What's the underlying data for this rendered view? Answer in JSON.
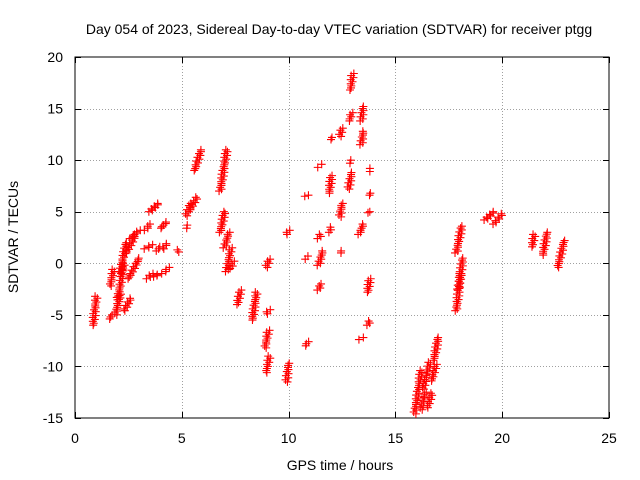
{
  "chart_data": {
    "type": "scatter",
    "title": "Day 054 of 2023, Sidereal Day-to-day VTEC variation (SDTVAR) for receiver ptgg",
    "xlabel": "GPS time / hours",
    "ylabel": "SDTVAR / TECUs",
    "xlim": [
      0,
      25
    ],
    "ylim": [
      -15,
      20
    ],
    "x_ticks": [
      0,
      5,
      10,
      15,
      20,
      25
    ],
    "y_ticks": [
      -15,
      -10,
      -5,
      0,
      5,
      10,
      15,
      20
    ],
    "grid": true,
    "marker": "+",
    "color": "#ff0000",
    "segments": [
      {
        "x": [
          0.85,
          1.0
        ],
        "y": [
          -6.0,
          -3.2
        ]
      },
      {
        "x": [
          1.6,
          1.75
        ],
        "y": [
          -5.4,
          -5.0
        ]
      },
      {
        "x": [
          1.65,
          1.8
        ],
        "y": [
          -2.2,
          -0.6
        ]
      },
      {
        "x": [
          1.9,
          2.1
        ],
        "y": [
          -5.0,
          -3.0
        ]
      },
      {
        "x": [
          2.0,
          2.3
        ],
        "y": [
          -3.5,
          0.0
        ]
      },
      {
        "x": [
          2.1,
          2.4
        ],
        "y": [
          -1.0,
          2.0
        ]
      },
      {
        "x": [
          2.3,
          2.6
        ],
        "y": [
          -4.6,
          -3.4
        ]
      },
      {
        "x": [
          2.4,
          2.8
        ],
        "y": [
          1.0,
          2.6
        ]
      },
      {
        "x": [
          2.5,
          3.0
        ],
        "y": [
          -1.5,
          0.5
        ]
      },
      {
        "x": [
          2.6,
          3.0
        ],
        "y": [
          2.4,
          3.2
        ]
      },
      {
        "x": [
          3.3,
          3.5
        ],
        "y": [
          3.2,
          3.8
        ]
      },
      {
        "x": [
          3.3,
          3.6
        ],
        "y": [
          1.4,
          1.8
        ]
      },
      {
        "x": [
          3.4,
          3.6
        ],
        "y": [
          -1.5,
          -1.0
        ]
      },
      {
        "x": [
          3.5,
          3.9
        ],
        "y": [
          5.0,
          5.8
        ]
      },
      {
        "x": [
          3.7,
          4.0
        ],
        "y": [
          -1.3,
          -1.0
        ]
      },
      {
        "x": [
          3.8,
          4.0
        ],
        "y": [
          1.2,
          1.6
        ]
      },
      {
        "x": [
          4.0,
          4.3
        ],
        "y": [
          3.4,
          4.0
        ]
      },
      {
        "x": [
          4.2,
          4.4
        ],
        "y": [
          -0.8,
          -0.4
        ]
      },
      {
        "x": [
          4.1,
          4.3
        ],
        "y": [
          1.4,
          1.9
        ]
      },
      {
        "x": [
          4.8,
          4.85
        ],
        "y": [
          1.1,
          1.3
        ]
      },
      {
        "x": [
          5.2,
          5.4
        ],
        "y": [
          4.6,
          5.8
        ]
      },
      {
        "x": [
          5.2,
          5.3
        ],
        "y": [
          3.4,
          3.7
        ]
      },
      {
        "x": [
          5.4,
          5.7
        ],
        "y": [
          5.2,
          6.4
        ]
      },
      {
        "x": [
          5.6,
          5.9
        ],
        "y": [
          9.0,
          11.0
        ]
      },
      {
        "x": [
          6.8,
          7.0
        ],
        "y": [
          3.0,
          5.0
        ]
      },
      {
        "x": [
          6.8,
          7.1
        ],
        "y": [
          7.0,
          11.0
        ]
      },
      {
        "x": [
          7.0,
          7.2
        ],
        "y": [
          1.5,
          3.0
        ]
      },
      {
        "x": [
          7.1,
          7.3
        ],
        "y": [
          -0.8,
          1.5
        ]
      },
      {
        "x": [
          7.3,
          7.4
        ],
        "y": [
          -0.5,
          0.2
        ]
      },
      {
        "x": [
          7.6,
          7.75
        ],
        "y": [
          -4.0,
          -2.6
        ]
      },
      {
        "x": [
          8.3,
          8.5
        ],
        "y": [
          -5.5,
          -2.8
        ]
      },
      {
        "x": [
          8.95,
          9.1
        ],
        "y": [
          -10.6,
          -9.0
        ]
      },
      {
        "x": [
          8.9,
          9.05
        ],
        "y": [
          -8.2,
          -6.5
        ]
      },
      {
        "x": [
          8.95,
          9.1
        ],
        "y": [
          -4.9,
          -4.5
        ]
      },
      {
        "x": [
          8.95,
          9.1
        ],
        "y": [
          -0.4,
          0.4
        ]
      },
      {
        "x": [
          9.9,
          10.0
        ],
        "y": [
          -11.5,
          -9.7
        ]
      },
      {
        "x": [
          9.9,
          10.0
        ],
        "y": [
          2.8,
          3.2
        ]
      },
      {
        "x": [
          10.8,
          10.9
        ],
        "y": [
          -8.0,
          -7.6
        ]
      },
      {
        "x": [
          10.8,
          10.9
        ],
        "y": [
          0.4,
          0.7
        ]
      },
      {
        "x": [
          10.8,
          10.9
        ],
        "y": [
          6.5,
          6.6
        ]
      },
      {
        "x": [
          11.4,
          11.5
        ],
        "y": [
          -2.6,
          -2.0
        ]
      },
      {
        "x": [
          11.4,
          11.6
        ],
        "y": [
          -0.2,
          1.2
        ]
      },
      {
        "x": [
          11.4,
          11.5
        ],
        "y": [
          2.4,
          2.8
        ]
      },
      {
        "x": [
          11.4,
          11.5
        ],
        "y": [
          9.3,
          9.6
        ]
      },
      {
        "x": [
          11.9,
          12.0
        ],
        "y": [
          3.0,
          3.5
        ]
      },
      {
        "x": [
          11.9,
          12.0
        ],
        "y": [
          6.8,
          8.5
        ]
      },
      {
        "x": [
          11.95,
          12.05
        ],
        "y": [
          12.0,
          12.2
        ]
      },
      {
        "x": [
          12.4,
          12.5
        ],
        "y": [
          1.0,
          1.2
        ]
      },
      {
        "x": [
          12.4,
          12.5
        ],
        "y": [
          4.5,
          5.8
        ]
      },
      {
        "x": [
          12.4,
          12.5
        ],
        "y": [
          12.3,
          13.1
        ]
      },
      {
        "x": [
          12.8,
          12.95
        ],
        "y": [
          7.2,
          8.8
        ]
      },
      {
        "x": [
          12.85,
          12.95
        ],
        "y": [
          9.7,
          10.0
        ]
      },
      {
        "x": [
          12.85,
          12.95
        ],
        "y": [
          13.8,
          14.6
        ]
      },
      {
        "x": [
          12.9,
          13.0
        ],
        "y": [
          16.8,
          18.4
        ]
      },
      {
        "x": [
          13.3,
          13.5
        ],
        "y": [
          2.8,
          3.8
        ]
      },
      {
        "x": [
          13.35,
          13.45
        ],
        "y": [
          -7.4,
          -7.2
        ]
      },
      {
        "x": [
          13.4,
          13.5
        ],
        "y": [
          11.5,
          12.8
        ]
      },
      {
        "x": [
          13.4,
          13.5
        ],
        "y": [
          13.8,
          15.2
        ]
      },
      {
        "x": [
          13.7,
          13.8
        ],
        "y": [
          -6.0,
          -5.6
        ]
      },
      {
        "x": [
          13.7,
          13.8
        ],
        "y": [
          -2.8,
          -1.5
        ]
      },
      {
        "x": [
          13.7,
          13.8
        ],
        "y": [
          4.9,
          5.0
        ]
      },
      {
        "x": [
          13.75,
          13.85
        ],
        "y": [
          6.6,
          6.8
        ]
      },
      {
        "x": [
          13.75,
          13.85
        ],
        "y": [
          8.9,
          9.2
        ]
      },
      {
        "x": [
          15.9,
          16.2
        ],
        "y": [
          -14.6,
          -10.4
        ]
      },
      {
        "x": [
          16.2,
          16.4
        ],
        "y": [
          -14.2,
          -12.5
        ]
      },
      {
        "x": [
          16.3,
          16.6
        ],
        "y": [
          -12.2,
          -9.6
        ]
      },
      {
        "x": [
          16.5,
          16.7
        ],
        "y": [
          -14.0,
          -12.6
        ]
      },
      {
        "x": [
          16.7,
          16.9
        ],
        "y": [
          -11.4,
          -9.8
        ]
      },
      {
        "x": [
          16.8,
          17.0
        ],
        "y": [
          -9.4,
          -7.2
        ]
      },
      {
        "x": [
          17.85,
          18.05
        ],
        "y": [
          -4.6,
          -1.0
        ]
      },
      {
        "x": [
          17.85,
          18.1
        ],
        "y": [
          1.0,
          3.6
        ]
      },
      {
        "x": [
          17.95,
          18.15
        ],
        "y": [
          -2.5,
          0.5
        ]
      },
      {
        "x": [
          19.2,
          19.6
        ],
        "y": [
          4.2,
          5.0
        ]
      },
      {
        "x": [
          19.6,
          20.0
        ],
        "y": [
          3.8,
          4.8
        ]
      },
      {
        "x": [
          21.4,
          21.5
        ],
        "y": [
          1.6,
          2.8
        ]
      },
      {
        "x": [
          21.9,
          22.1
        ],
        "y": [
          0.8,
          3.0
        ]
      },
      {
        "x": [
          22.6,
          22.9
        ],
        "y": [
          -0.4,
          2.2
        ]
      }
    ]
  }
}
